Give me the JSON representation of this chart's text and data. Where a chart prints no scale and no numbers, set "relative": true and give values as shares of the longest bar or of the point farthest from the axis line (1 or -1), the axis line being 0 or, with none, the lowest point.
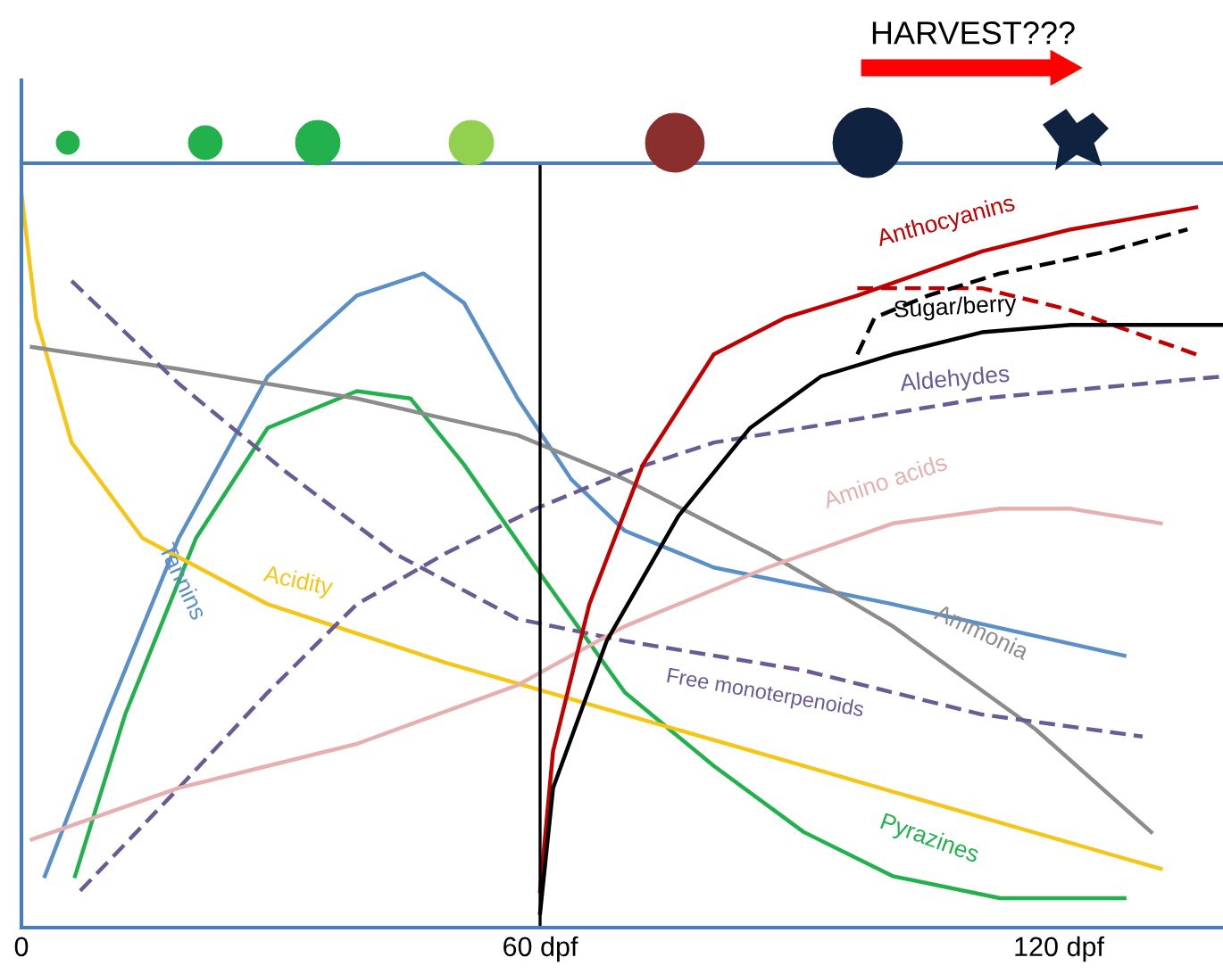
{
  "chart_data": {
    "type": "line",
    "relative": true,
    "xlim": [
      0,
      139
    ],
    "xticks": [
      {
        "value": 0,
        "label": "0"
      },
      {
        "value": 60,
        "label": "60 dpf"
      },
      {
        "value": 120,
        "label": "120 dpf"
      }
    ],
    "tick_labels": "x",
    "grid": false,
    "legend": false,
    "annotations": [
      "HARVEST???"
    ],
    "ref_lines": [
      {
        "axis": "x",
        "value": 60,
        "color": "#000000"
      }
    ],
    "series": [
      {
        "name": "Tannins",
        "color": "#5b8fc7",
        "x": [
          2.7,
          9.9,
          18.2,
          28.5,
          38.8,
          46.5,
          51.2,
          57.4,
          63.6,
          69.8,
          80.1,
          100.8,
          127.6
        ],
        "values": [
          0.07,
          0.29,
          0.53,
          0.75,
          0.86,
          0.89,
          0.85,
          0.72,
          0.61,
          0.54,
          0.49,
          0.44,
          0.37
        ]
      },
      {
        "name": "Pyrazines",
        "color": "#22b14c",
        "x": [
          6.2,
          12.0,
          20.2,
          28.5,
          38.8,
          45.0,
          51.2,
          59.5,
          69.8,
          80.1,
          90.5,
          100.8,
          113.2,
          127.6
        ],
        "values": [
          0.07,
          0.29,
          0.53,
          0.68,
          0.73,
          0.72,
          0.63,
          0.49,
          0.32,
          0.22,
          0.13,
          0.07,
          0.04,
          0.04
        ]
      },
      {
        "name": "Acidity",
        "color": "#f5c518",
        "x": [
          0,
          1.7,
          5.8,
          14.0,
          28.5,
          49.2,
          69.8,
          90.5,
          111.1,
          131.8
        ],
        "values": [
          1.0,
          0.83,
          0.66,
          0.53,
          0.44,
          0.36,
          0.29,
          0.22,
          0.15,
          0.08
        ]
      },
      {
        "name": "Ammonia",
        "color": "#8c8c8c",
        "x": [
          1.2,
          18.2,
          38.8,
          57.4,
          69.8,
          86.3,
          100.8,
          117.3,
          130.7
        ],
        "values": [
          0.79,
          0.76,
          0.72,
          0.67,
          0.61,
          0.51,
          0.41,
          0.27,
          0.13
        ]
      },
      {
        "name": "Free monoterpenoids",
        "color": "#6b5b95",
        "line_style": "dashed",
        "x": [
          5.8,
          18.2,
          30.6,
          43.0,
          57.4,
          69.8,
          90.5,
          111.1,
          129.7
        ],
        "values": [
          0.88,
          0.74,
          0.62,
          0.51,
          0.42,
          0.39,
          0.35,
          0.29,
          0.26
        ]
      },
      {
        "name": "Aldehydes",
        "color": "#6b5b95",
        "line_style": "dashed",
        "x": [
          6.8,
          18.2,
          28.5,
          38.8,
          49.2,
          59.5,
          69.8,
          80.1,
          90.5,
          111.1,
          139.0
        ],
        "values": [
          0.05,
          0.19,
          0.32,
          0.44,
          0.51,
          0.57,
          0.62,
          0.66,
          0.68,
          0.72,
          0.75
        ]
      },
      {
        "name": "Amino acids",
        "color": "#e6b0b0",
        "x": [
          1.2,
          18.2,
          38.8,
          57.4,
          69.8,
          86.3,
          100.8,
          113.2,
          121.4,
          131.8
        ],
        "values": [
          0.12,
          0.19,
          0.25,
          0.33,
          0.41,
          0.49,
          0.55,
          0.57,
          0.57,
          0.55
        ]
      },
      {
        "name": "Anthocyanins",
        "color": "#c00000",
        "x": [
          60,
          61.5,
          65.7,
          71.9,
          80.1,
          88.4,
          96.7,
          111.1,
          121.4,
          135.9
        ],
        "values": [
          0.05,
          0.24,
          0.44,
          0.63,
          0.78,
          0.83,
          0.86,
          0.92,
          0.95,
          0.98
        ]
      },
      {
        "color": "#c00000",
        "line_style": "dashed",
        "x": [
          96.7,
          111.1,
          121.4,
          135.9
        ],
        "values": [
          0.87,
          0.87,
          0.84,
          0.78
        ]
      },
      {
        "name": "Sugar/berry",
        "color": "#000000",
        "x": [
          60,
          61.5,
          67.7,
          76.0,
          84.3,
          92.5,
          100.8,
          111.1,
          121.4,
          139.0
        ],
        "values": [
          0.02,
          0.19,
          0.39,
          0.56,
          0.68,
          0.75,
          0.78,
          0.81,
          0.82,
          0.82
        ]
      },
      {
        "color": "#000000",
        "line_style": "dashed",
        "x": [
          96.7,
          98.7,
          104.9,
          113.2,
          125.6,
          134.9
        ],
        "values": [
          0.78,
          0.83,
          0.86,
          0.89,
          0.92,
          0.95
        ]
      }
    ]
  }
}
